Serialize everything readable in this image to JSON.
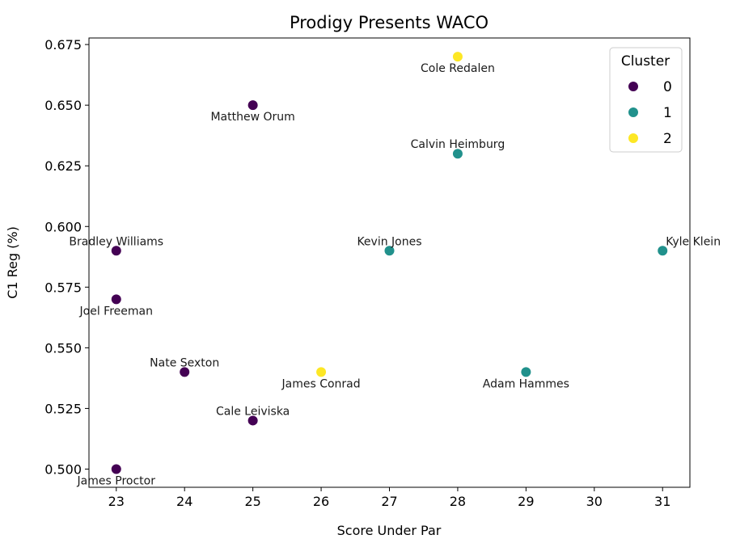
{
  "chart_data": {
    "type": "scatter",
    "title": "Prodigy Presents WACO",
    "xlabel": "Score Under Par",
    "ylabel": "C1 Reg (%)",
    "xlim": [
      22.6,
      31.4
    ],
    "ylim": [
      0.4925,
      0.6777
    ],
    "x_ticks": [
      "23",
      "24",
      "25",
      "26",
      "27",
      "28",
      "29",
      "30",
      "31"
    ],
    "y_ticks": [
      "0.500",
      "0.525",
      "0.550",
      "0.575",
      "0.600",
      "0.625",
      "0.650",
      "0.675"
    ],
    "grid": false,
    "legend": {
      "title": "Cluster",
      "placement": "top-right",
      "entries": [
        {
          "label": "0",
          "color": "#440154"
        },
        {
          "label": "1",
          "color": "#21918c"
        },
        {
          "label": "2",
          "color": "#fde725"
        }
      ]
    },
    "points": [
      {
        "name": "Cole Redalen",
        "x": 28,
        "y": 0.67,
        "cluster": 2,
        "label_pos": "below"
      },
      {
        "name": "Matthew Orum",
        "x": 25,
        "y": 0.65,
        "cluster": 0,
        "label_pos": "below"
      },
      {
        "name": "Calvin Heimburg",
        "x": 28,
        "y": 0.63,
        "cluster": 1,
        "label_pos": "above"
      },
      {
        "name": "Bradley Williams",
        "x": 23,
        "y": 0.59,
        "cluster": 0,
        "label_pos": "above"
      },
      {
        "name": "Kevin Jones",
        "x": 27,
        "y": 0.59,
        "cluster": 1,
        "label_pos": "above"
      },
      {
        "name": "Kyle Klein",
        "x": 31,
        "y": 0.59,
        "cluster": 1,
        "label_pos": "above-right"
      },
      {
        "name": "Joel Freeman",
        "x": 23,
        "y": 0.57,
        "cluster": 0,
        "label_pos": "below"
      },
      {
        "name": "Nate Sexton",
        "x": 24,
        "y": 0.54,
        "cluster": 0,
        "label_pos": "above"
      },
      {
        "name": "James Conrad",
        "x": 26,
        "y": 0.54,
        "cluster": 2,
        "label_pos": "below"
      },
      {
        "name": "Adam Hammes",
        "x": 29,
        "y": 0.54,
        "cluster": 1,
        "label_pos": "below"
      },
      {
        "name": "Cale Leiviska",
        "x": 25,
        "y": 0.52,
        "cluster": 0,
        "label_pos": "above"
      },
      {
        "name": "James Proctor",
        "x": 23,
        "y": 0.5,
        "cluster": 0,
        "label_pos": "below"
      }
    ]
  }
}
